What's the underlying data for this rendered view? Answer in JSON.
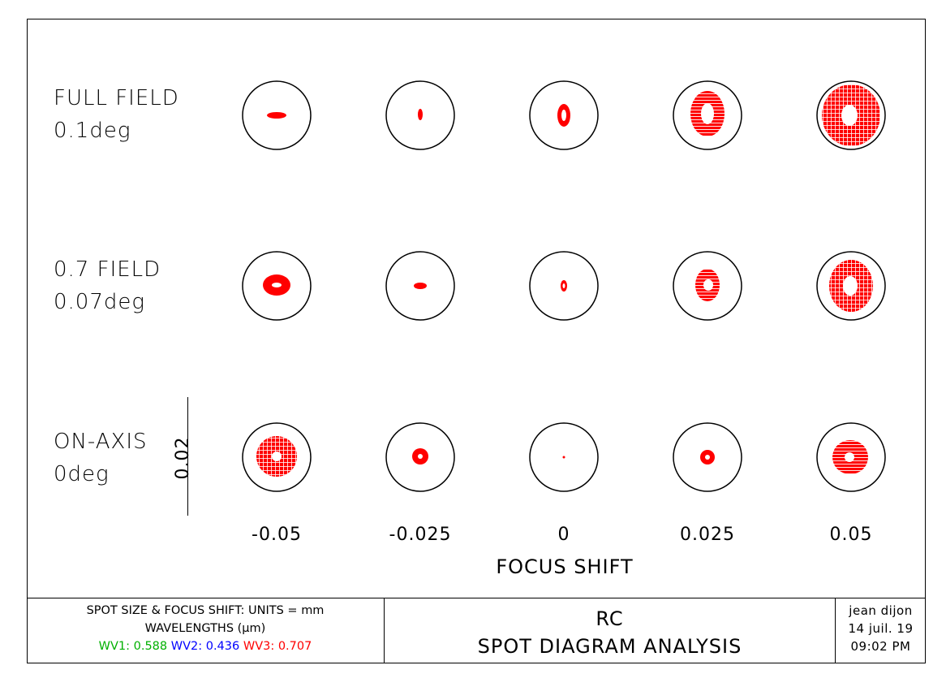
{
  "diagram": {
    "rows": [
      {
        "label_line1": "FULL FIELD",
        "label_line2": "0.1deg"
      },
      {
        "label_line1": "0.7 FIELD",
        "label_line2": "0.07deg"
      },
      {
        "label_line1": "ON-AXIS",
        "label_line2": "0deg"
      }
    ],
    "focus_shifts": [
      "-0.05",
      "-0.025",
      "0",
      "0.025",
      "0.05"
    ],
    "focus_axis_title": "FOCUS SHIFT",
    "scale_bar_label": "0.02",
    "spot_color": "#ff0000",
    "circle_color": "#000000"
  },
  "footer": {
    "units_line": "SPOT SIZE & FOCUS SHIFT: UNITS = mm",
    "wavelengths_line": "WAVELENGTHS (μm)",
    "wavelengths": [
      {
        "label": "WV1: 0.588",
        "color": "#00b000"
      },
      {
        "label": "WV2: 0.436",
        "color": "#0000ff"
      },
      {
        "label": "WV3: 0.707",
        "color": "#ff0000"
      }
    ],
    "title_line1": "RC",
    "title_line2": "SPOT DIAGRAM ANALYSIS",
    "author": "jean dijon",
    "date": "14 juil. 19",
    "time": "09:02 PM"
  }
}
